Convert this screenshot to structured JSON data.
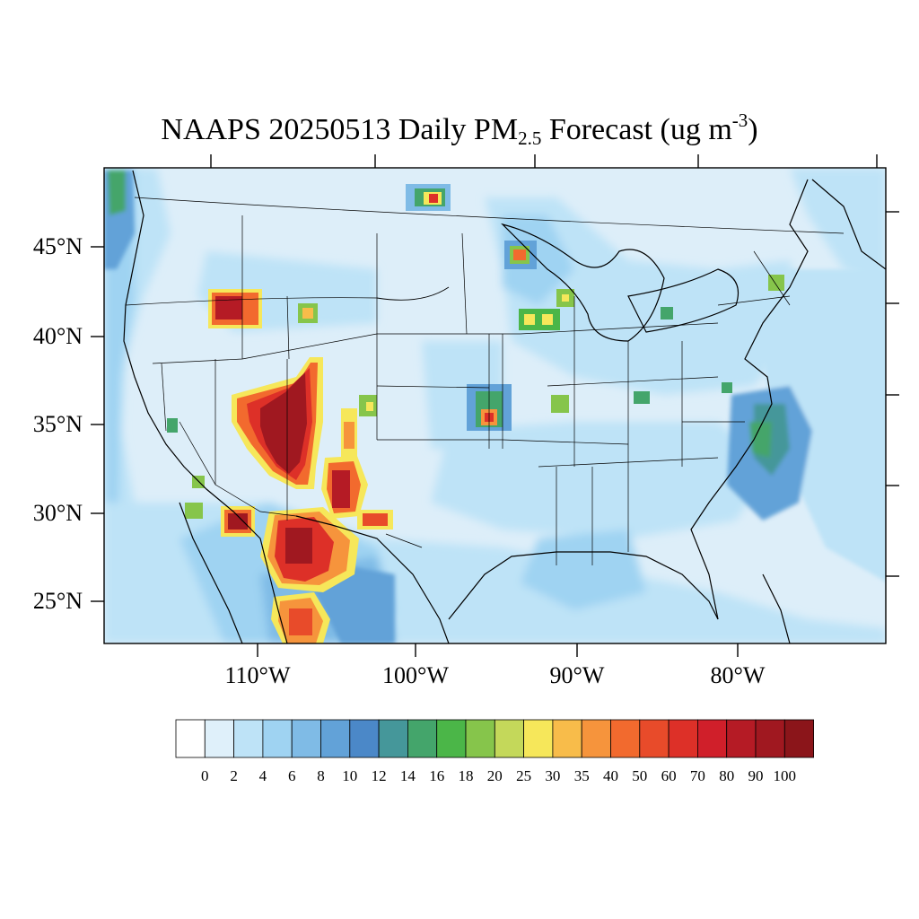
{
  "title": {
    "main": "NAAPS 20250513 Daily PM",
    "subscript": "2.5",
    "after": " Forecast (ug m",
    "superscript": "-3",
    "close": ")"
  },
  "map": {
    "projection": "lambert-conformal",
    "region": "Continental United States",
    "lat_range": [
      22.5,
      49.5
    ],
    "lon_range": [
      -119,
      -72
    ],
    "lat_labels": [
      "45°N",
      "40°N",
      "35°N",
      "30°N",
      "25°N"
    ],
    "lon_labels": [
      "110°W",
      "100°W",
      "90°W",
      "80°W"
    ],
    "background_color": "#ddeef9"
  },
  "colorbar": {
    "labels": [
      "0",
      "2",
      "4",
      "6",
      "8",
      "10",
      "12",
      "14",
      "16",
      "18",
      "20",
      "25",
      "30",
      "35",
      "40",
      "50",
      "60",
      "70",
      "80",
      "90",
      "100"
    ],
    "colors": [
      "#ffffff",
      "#dff0fa",
      "#bee3f7",
      "#9fd3f2",
      "#7fbbe6",
      "#62a2d8",
      "#4b88c8",
      "#45979a",
      "#44a56b",
      "#4bb648",
      "#86c54b",
      "#c4d85a",
      "#f6e75a",
      "#f8bc4a",
      "#f6943c",
      "#f26a2e",
      "#e84b2a",
      "#dd3028",
      "#d01f2a",
      "#b51b25",
      "#a01820",
      "#8b151a"
    ]
  },
  "plumes": [
    {
      "region": "Arizona / Utah smoke",
      "lon": -108.5,
      "lat": 34.8,
      "level": 100
    },
    {
      "region": "Idaho",
      "lon": -111.5,
      "lat": 41.5,
      "level": 90
    },
    {
      "region": "New Mexico",
      "lon": -105,
      "lat": 31.5,
      "level": 90
    },
    {
      "region": "Chihuahua",
      "lon": -107,
      "lat": 28,
      "level": 90
    },
    {
      "region": "Sonora",
      "lon": -110.5,
      "lat": 29.5,
      "level": 90
    },
    {
      "region": "Sinaloa",
      "lon": -106.5,
      "lat": 24,
      "level": 60
    },
    {
      "region": "Kansas",
      "lon": -95.5,
      "lat": 35.5,
      "level": 50
    },
    {
      "region": "Minnesota",
      "lon": -92.5,
      "lat": 44.5,
      "level": 50
    },
    {
      "region": "North Dakota border",
      "lon": -98,
      "lat": 48.5,
      "level": 40
    },
    {
      "region": "Wisconsin",
      "lon": -89,
      "lat": 42.5,
      "level": 35
    },
    {
      "region": "Atlantic offshore",
      "lon": -78,
      "lat": 33.5,
      "level": 16
    }
  ]
}
